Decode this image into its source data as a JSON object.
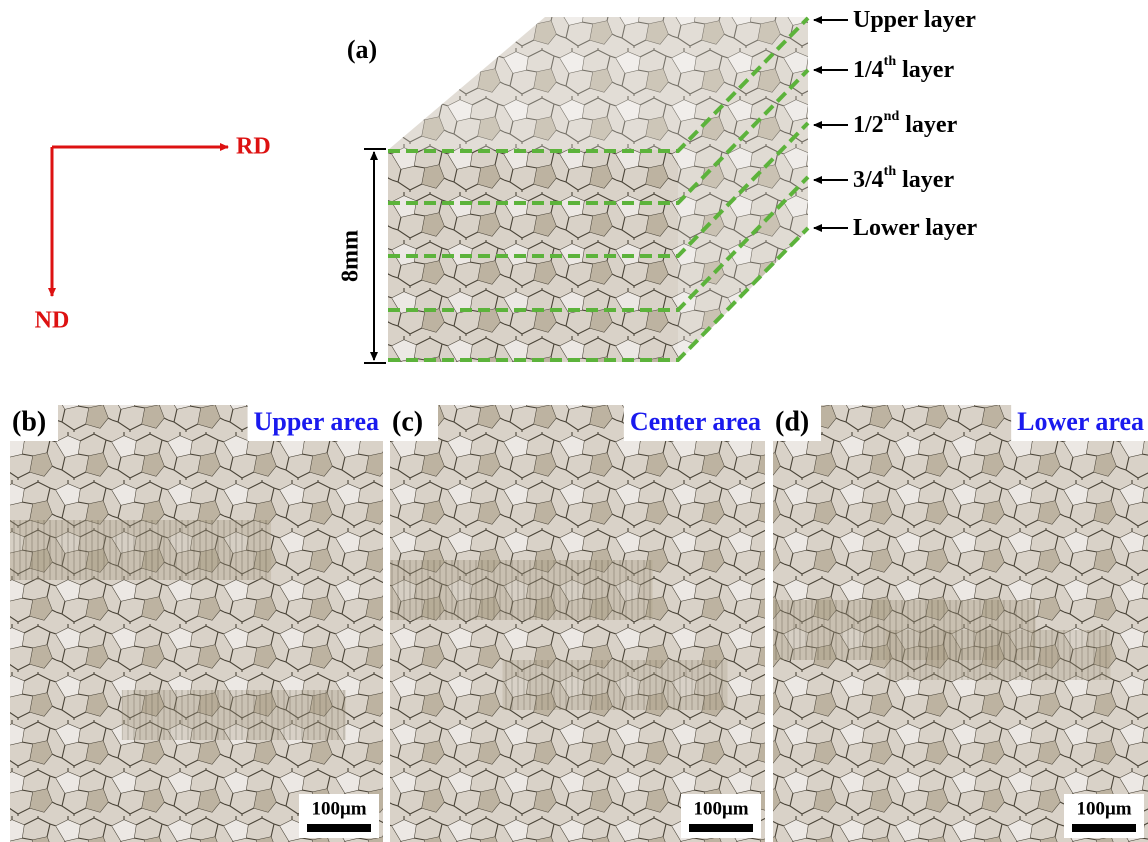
{
  "axes": {
    "horizontal": "RD",
    "vertical": "ND"
  },
  "schematic": {
    "label": "(a)",
    "thickness": "8mm",
    "layers": [
      {
        "text": "Upper layer"
      },
      {
        "text": "1/4",
        "sup": "th",
        "rest": " layer"
      },
      {
        "text": "1/2",
        "sup": "nd",
        "rest": " layer"
      },
      {
        "text": "3/4",
        "sup": "th",
        "rest": " layer"
      },
      {
        "text": "Lower layer"
      }
    ]
  },
  "panels": [
    {
      "label": "(b)",
      "area": "Upper area",
      "scale_bar": "100μm"
    },
    {
      "label": "(c)",
      "area": "Center area",
      "scale_bar": "100μm"
    },
    {
      "label": "(d)",
      "area": "Lower area",
      "scale_bar": "100μm"
    }
  ]
}
